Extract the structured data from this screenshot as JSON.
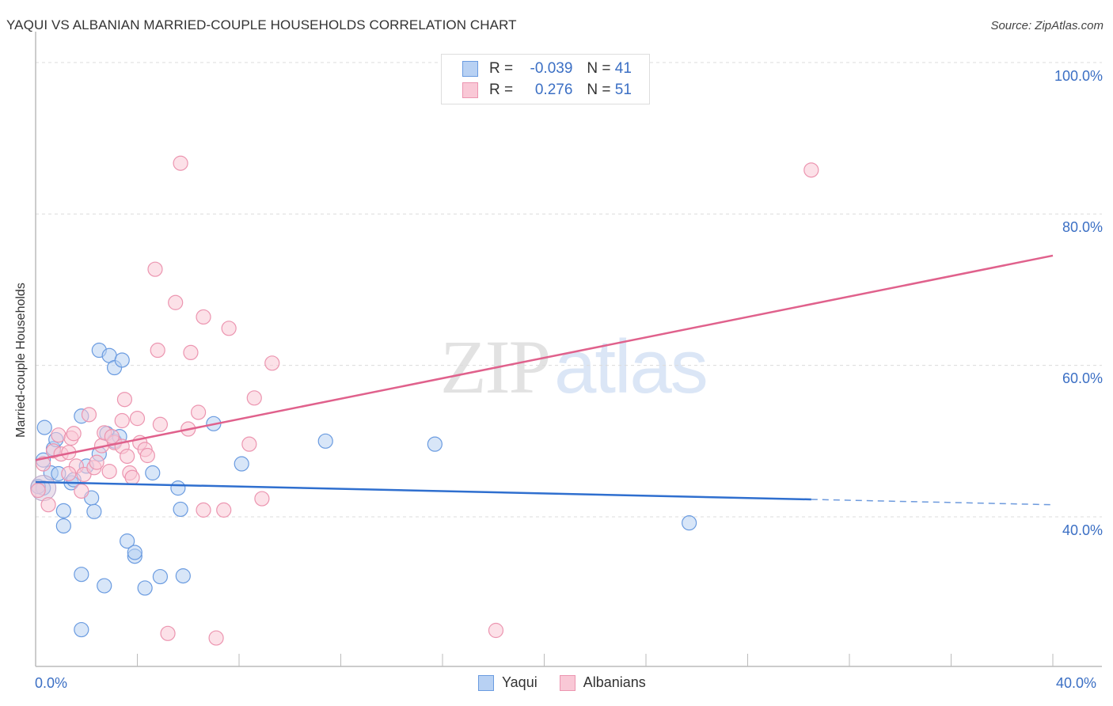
{
  "header": {
    "title": "YAQUI VS ALBANIAN MARRIED-COUPLE HOUSEHOLDS CORRELATION CHART",
    "source": "Source: ZipAtlas.com"
  },
  "watermark": {
    "zip": "ZIP",
    "atlas": "atlas"
  },
  "legend_top": {
    "rows": [
      {
        "series": "Yaqui",
        "r_label": "R =",
        "r_value": "-0.039",
        "n_label": "N =",
        "n_value": "41"
      },
      {
        "series": "Albanians",
        "r_label": "R =",
        "r_value": "0.276",
        "n_label": "N =",
        "n_value": "51"
      }
    ]
  },
  "legend_bottom": {
    "items": [
      "Yaqui",
      "Albanians"
    ]
  },
  "axes": {
    "ylabel": "Married-couple Households",
    "yticks": [
      "100.0%",
      "80.0%",
      "60.0%",
      "40.0%"
    ],
    "xticks": [
      "0.0%",
      "40.0%"
    ]
  },
  "colors": {
    "yaqui_fill": "#b8d1f3",
    "yaqui_stroke": "#6a9be0",
    "yaqui_line": "#2f6fcf",
    "albanian_fill": "#f9c8d6",
    "albanian_stroke": "#ec95b0",
    "albanian_line": "#e0618c",
    "tick_label": "#3b6fc4"
  },
  "chart_data": {
    "type": "scatter",
    "title": "YAQUI VS ALBANIAN MARRIED-COUPLE HOUSEHOLDS CORRELATION CHART",
    "xlabel": "",
    "ylabel": "Married-couple Households",
    "xlim": [
      0,
      40
    ],
    "ylim": [
      22,
      102
    ],
    "x_unit": "%",
    "y_unit": "%",
    "grid": "horizontal dashed at 40, 60, 80, 100",
    "legend_position": "top-center and bottom-center",
    "series": [
      {
        "name": "Yaqui",
        "r": -0.039,
        "n": 41,
        "trend": {
          "x": [
            0,
            30.5
          ],
          "y": [
            44.6,
            42.3
          ],
          "dashed_extension": {
            "x": [
              30.5,
              40
            ],
            "y": [
              42.3,
              41.6
            ]
          }
        },
        "points": [
          [
            0.3,
            43.8
          ],
          [
            0.3,
            47.5
          ],
          [
            0.35,
            51.8
          ],
          [
            0.6,
            45.8
          ],
          [
            0.7,
            49.0
          ],
          [
            0.8,
            50.2
          ],
          [
            0.9,
            45.7
          ],
          [
            1.1,
            38.8
          ],
          [
            1.1,
            40.8
          ],
          [
            1.4,
            44.5
          ],
          [
            1.5,
            44.9
          ],
          [
            1.8,
            53.3
          ],
          [
            1.8,
            32.4
          ],
          [
            1.8,
            25.1
          ],
          [
            2.0,
            46.7
          ],
          [
            2.2,
            42.5
          ],
          [
            2.3,
            40.7
          ],
          [
            2.5,
            48.3
          ],
          [
            2.5,
            62.0
          ],
          [
            2.9,
            61.3
          ],
          [
            2.8,
            51.0
          ],
          [
            3.1,
            50.0
          ],
          [
            3.1,
            59.7
          ],
          [
            3.4,
            60.7
          ],
          [
            3.3,
            50.6
          ],
          [
            3.6,
            36.8
          ],
          [
            3.9,
            34.8
          ],
          [
            3.9,
            35.3
          ],
          [
            2.7,
            30.9
          ],
          [
            4.3,
            30.6
          ],
          [
            4.6,
            45.8
          ],
          [
            4.9,
            32.1
          ],
          [
            5.6,
            43.8
          ],
          [
            5.7,
            41.0
          ],
          [
            5.8,
            32.2
          ],
          [
            7.0,
            52.3
          ],
          [
            8.1,
            47.0
          ],
          [
            11.4,
            50.0
          ],
          [
            15.7,
            49.6
          ],
          [
            25.7,
            39.2
          ],
          [
            0.1,
            44.0
          ]
        ]
      },
      {
        "name": "Albanians",
        "r": 0.276,
        "n": 51,
        "trend": {
          "x": [
            0,
            40
          ],
          "y": [
            47.5,
            74.5
          ]
        },
        "points": [
          [
            0.1,
            43.5
          ],
          [
            0.3,
            47.0
          ],
          [
            0.5,
            41.6
          ],
          [
            0.7,
            48.7
          ],
          [
            0.9,
            50.8
          ],
          [
            1.0,
            48.3
          ],
          [
            1.3,
            48.5
          ],
          [
            1.4,
            50.4
          ],
          [
            1.5,
            51.0
          ],
          [
            1.6,
            46.7
          ],
          [
            1.8,
            43.4
          ],
          [
            1.9,
            45.6
          ],
          [
            2.1,
            53.5
          ],
          [
            2.3,
            46.5
          ],
          [
            2.4,
            47.2
          ],
          [
            2.6,
            49.4
          ],
          [
            2.7,
            51.1
          ],
          [
            2.9,
            46.0
          ],
          [
            3.1,
            49.8
          ],
          [
            3.4,
            49.3
          ],
          [
            3.4,
            52.7
          ],
          [
            3.5,
            55.5
          ],
          [
            3.6,
            48.0
          ],
          [
            3.7,
            45.8
          ],
          [
            3.8,
            45.2
          ],
          [
            4.0,
            53.0
          ],
          [
            4.1,
            49.8
          ],
          [
            4.3,
            48.9
          ],
          [
            4.4,
            48.1
          ],
          [
            4.7,
            72.7
          ],
          [
            4.8,
            62.0
          ],
          [
            4.9,
            52.2
          ],
          [
            5.2,
            24.6
          ],
          [
            5.5,
            68.3
          ],
          [
            5.7,
            86.7
          ],
          [
            6.0,
            51.6
          ],
          [
            6.1,
            61.7
          ],
          [
            6.4,
            53.8
          ],
          [
            6.6,
            66.4
          ],
          [
            6.6,
            40.9
          ],
          [
            7.1,
            24.0
          ],
          [
            7.4,
            40.9
          ],
          [
            7.6,
            64.9
          ],
          [
            8.4,
            49.6
          ],
          [
            8.6,
            55.7
          ],
          [
            8.9,
            42.4
          ],
          [
            9.3,
            60.3
          ],
          [
            18.1,
            25.0
          ],
          [
            30.5,
            85.8
          ],
          [
            3.0,
            50.6
          ],
          [
            1.3,
            45.7
          ]
        ]
      }
    ]
  }
}
